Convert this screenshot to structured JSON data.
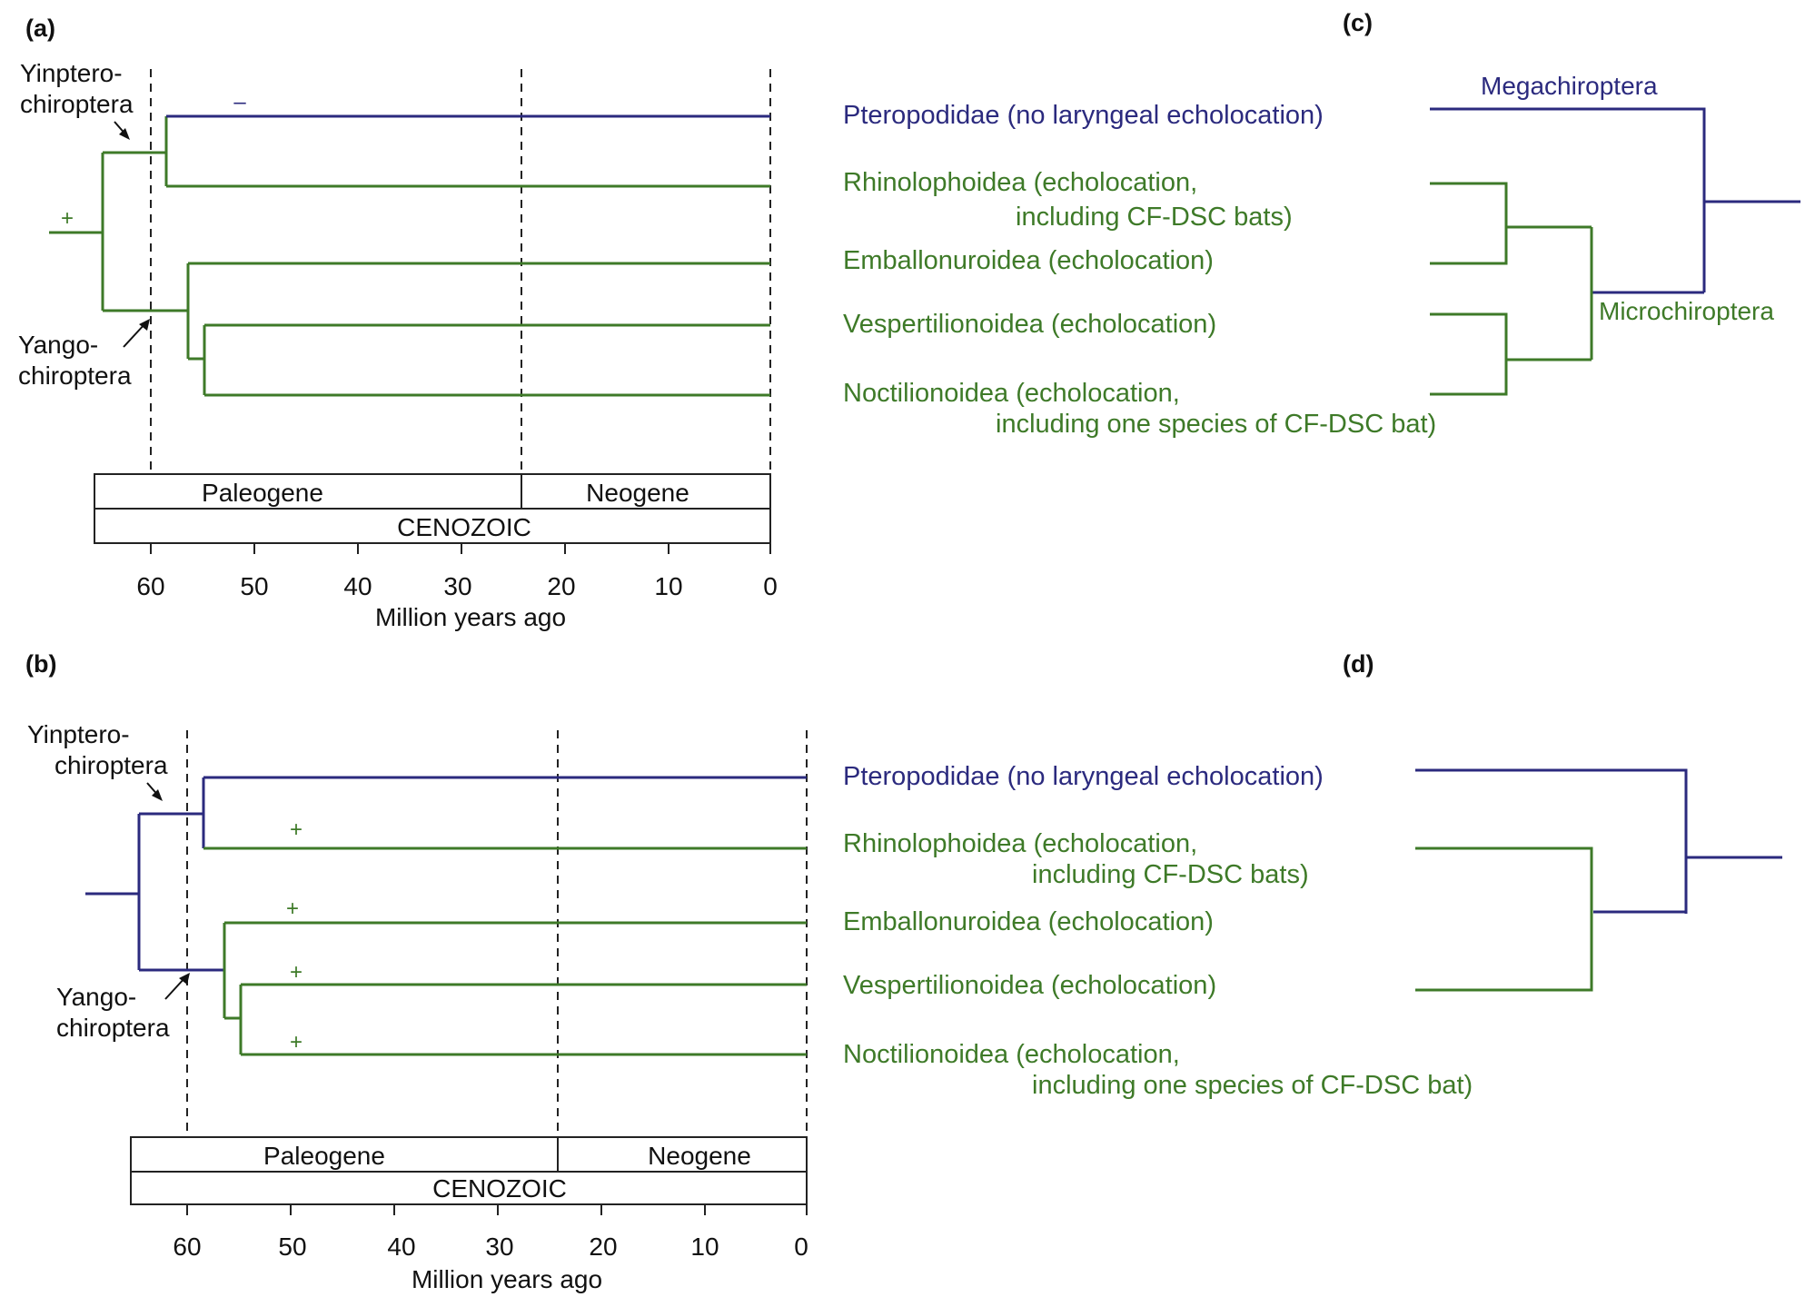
{
  "colors": {
    "no_echolocation": "#2b2a7e",
    "echolocation": "#3e7a28"
  },
  "panels": {
    "a": {
      "letter": "(a)",
      "root_sign": "+",
      "pteropodidae_sign": "–"
    },
    "b": {
      "letter": "(b)",
      "signs": [
        "+",
        "+",
        "+",
        "+"
      ]
    },
    "c": {
      "letter": "(c)",
      "megachiroptera": "Megachiroptera",
      "microchiroptera": "Microchiroptera"
    },
    "d": {
      "letter": "(d)"
    }
  },
  "clade_labels": {
    "yinptero_1": "Yinptero-",
    "yinptero_2": "chiroptera",
    "yango_1": "Yango-",
    "yango_2": "chiroptera"
  },
  "timescale": {
    "periods": [
      "Paleogene",
      "Neogene"
    ],
    "era": "CENOZOIC",
    "ticks": [
      "60",
      "50",
      "40",
      "30",
      "20",
      "10",
      "0"
    ],
    "xlabel": "Million years ago"
  },
  "taxa_c": [
    {
      "line1": "Pteropodidae (no laryngeal echolocation)"
    },
    {
      "line1": "Rhinolophoidea (echolocation,",
      "line2": "including CF-DSC bats)"
    },
    {
      "line1": "Emballonuroidea (echolocation)"
    },
    {
      "line1": "Vespertilionoidea (echolocation)"
    },
    {
      "line1": "Noctilionoidea (echolocation,",
      "line2": "including one species of CF-DSC bat)"
    }
  ],
  "taxa_d": [
    {
      "line1": "Pteropodidae (no laryngeal echolocation)"
    },
    {
      "line1": "Rhinolophoidea (echolocation,",
      "line2": "including CF-DSC bats)"
    },
    {
      "line1": "Emballonuroidea (echolocation)"
    },
    {
      "line1": "Vespertilionoidea (echolocation)"
    },
    {
      "line1": "Noctilionoidea (echolocation,",
      "line2": "including one species of CF-DSC bat)"
    }
  ]
}
